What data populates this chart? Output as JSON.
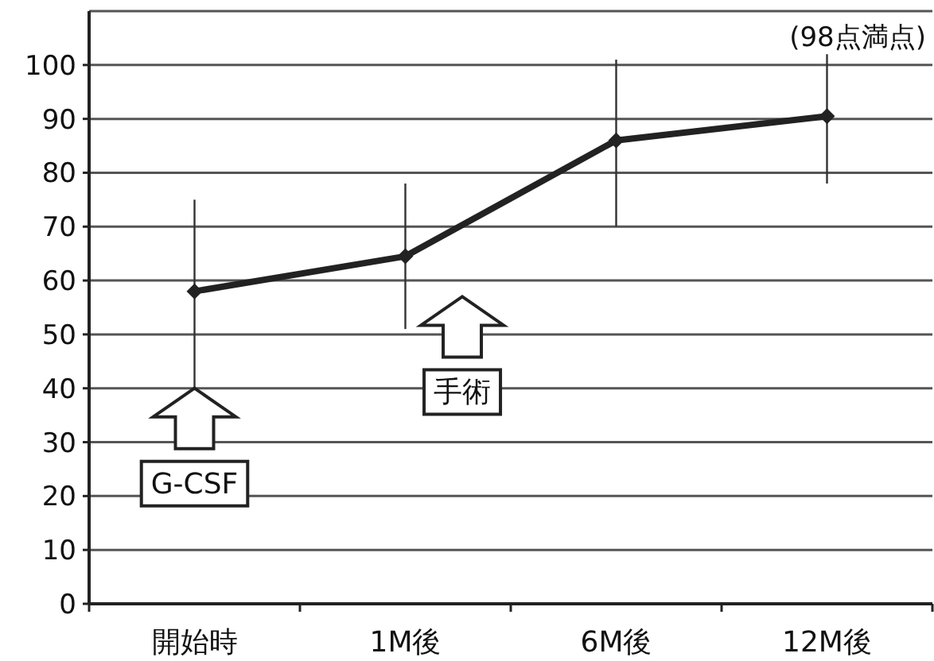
{
  "chart_data": {
    "type": "line",
    "categories": [
      "開始時",
      "1M後",
      "6M後",
      "12M後"
    ],
    "series": [
      {
        "color": "#222222",
        "values": [
          58,
          64.5,
          86,
          90.5
        ],
        "errors": [
          [
            40,
            75
          ],
          [
            51,
            78
          ],
          [
            70,
            101
          ],
          [
            78,
            102
          ]
        ]
      }
    ],
    "ylim": [
      0,
      110
    ],
    "yticks": [
      0,
      10,
      20,
      30,
      40,
      50,
      60,
      70,
      80,
      90,
      100
    ],
    "grid": "y",
    "marker": "diamond",
    "line_style": "solid",
    "annotations": [
      "(98点満点)",
      {
        "text": "G-CSF",
        "x": "開始時",
        "y": 40
      },
      {
        "text": "手術",
        "x": "1M後",
        "y": 57
      }
    ]
  }
}
